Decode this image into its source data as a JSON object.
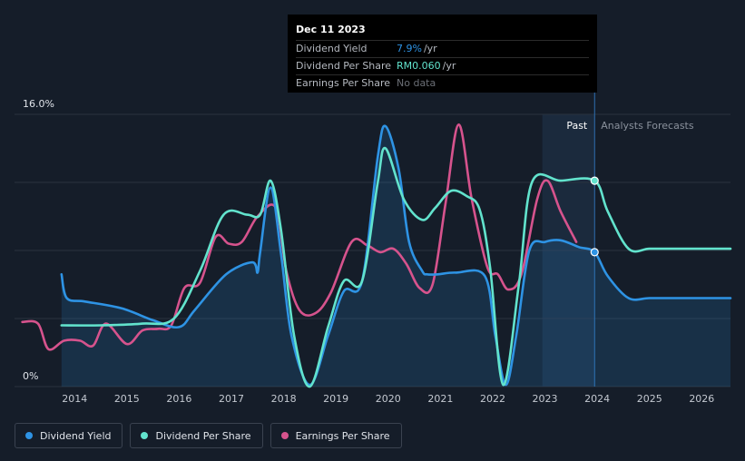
{
  "tooltip": {
    "date": "Dec 11 2023",
    "rows": [
      {
        "label": "Dividend Yield",
        "value": "7.9%",
        "unit": "/yr"
      },
      {
        "label": "Dividend Per Share",
        "value": "RM0.060",
        "unit": "/yr"
      },
      {
        "label": "Earnings Per Share",
        "value": "No data",
        "unit": ""
      }
    ]
  },
  "legend": [
    {
      "label": "Dividend Yield",
      "color": "#2e93e4"
    },
    {
      "label": "Dividend Per Share",
      "color": "#62e3cd"
    },
    {
      "label": "Earnings Per Share",
      "color": "#d6538d"
    }
  ],
  "chart_data": {
    "type": "line",
    "y_axis_labels": [
      "16.0%",
      "0%"
    ],
    "ylim": [
      0,
      16
    ],
    "xlim": [
      2012.85,
      2026.55
    ],
    "x_ticks": [
      "2014",
      "2015",
      "2016",
      "2017",
      "2018",
      "2019",
      "2020",
      "2021",
      "2022",
      "2023",
      "2024",
      "2025",
      "2026"
    ],
    "region_labels": {
      "past": "Past",
      "forecast": "Analysts Forecasts"
    },
    "past_start": 2022.95,
    "forecast_start": 2023.95,
    "series": [
      {
        "name": "Dividend Yield",
        "color": "#2e93e4",
        "filled": true,
        "x": [
          2013.75,
          2013.85,
          2014.2,
          2014.9,
          2015.5,
          2016.0,
          2016.3,
          2016.9,
          2017.4,
          2017.5,
          2017.55,
          2017.75,
          2017.95,
          2018.15,
          2018.5,
          2018.85,
          2019.15,
          2019.5,
          2019.8,
          2019.95,
          2020.2,
          2020.4,
          2020.65,
          2020.75,
          2020.95,
          2021.3,
          2021.85,
          2022.05,
          2022.25,
          2022.45,
          2022.7,
          2023.0,
          2023.3,
          2023.65,
          2023.95,
          2024.2,
          2024.6,
          2025.0,
          2025.5,
          2026.0,
          2026.55
        ],
        "values": [
          6.6,
          5.2,
          5.0,
          4.6,
          3.9,
          3.5,
          4.5,
          6.6,
          7.3,
          6.7,
          7.9,
          11.7,
          7.8,
          3.0,
          0.1,
          3.0,
          5.6,
          6.2,
          13.5,
          15.3,
          12.8,
          8.5,
          6.8,
          6.6,
          6.6,
          6.7,
          6.5,
          3.0,
          0.1,
          3.0,
          8.0,
          8.5,
          8.6,
          8.2,
          7.9,
          6.5,
          5.2,
          5.2,
          5.2,
          5.2,
          5.2
        ]
      },
      {
        "name": "Dividend Per Share",
        "color": "#62e3cd",
        "filled": false,
        "x": [
          2013.75,
          2014.5,
          2015.3,
          2015.9,
          2016.4,
          2016.85,
          2017.3,
          2017.55,
          2017.75,
          2017.95,
          2018.2,
          2018.5,
          2018.85,
          2019.15,
          2019.5,
          2019.8,
          2019.95,
          2020.3,
          2020.65,
          2020.9,
          2021.2,
          2021.5,
          2021.75,
          2021.95,
          2022.2,
          2022.5,
          2022.75,
          2023.3,
          2023.95,
          2024.2,
          2024.6,
          2025.0,
          2025.5,
          2026.0,
          2026.55
        ],
        "values": [
          3.6,
          3.6,
          3.7,
          4.0,
          6.8,
          10.1,
          10.1,
          10.1,
          12.1,
          9.2,
          3.0,
          0.0,
          3.5,
          6.2,
          6.2,
          12.0,
          14.0,
          11.0,
          9.8,
          10.5,
          11.5,
          11.2,
          10.4,
          7.0,
          0.1,
          6.0,
          12.0,
          12.1,
          12.1,
          10.3,
          8.1,
          8.1,
          8.1,
          8.1,
          8.1
        ]
      },
      {
        "name": "Earnings Per Share",
        "color": "#d6538d",
        "filled": false,
        "x": [
          2013.0,
          2013.3,
          2013.5,
          2013.8,
          2014.1,
          2014.35,
          2014.6,
          2015.0,
          2015.3,
          2015.6,
          2015.85,
          2016.1,
          2016.4,
          2016.7,
          2016.95,
          2017.2,
          2017.5,
          2017.85,
          2018.05,
          2018.3,
          2018.6,
          2018.9,
          2019.3,
          2019.6,
          2019.85,
          2020.1,
          2020.35,
          2020.6,
          2020.85,
          2021.1,
          2021.35,
          2021.6,
          2021.9,
          2022.1,
          2022.3,
          2022.55,
          2022.85,
          2023.05,
          2023.3,
          2023.6
        ],
        "values": [
          3.8,
          3.7,
          2.2,
          2.7,
          2.7,
          2.4,
          3.7,
          2.5,
          3.3,
          3.4,
          3.6,
          5.8,
          6.1,
          8.8,
          8.4,
          8.5,
          10.0,
          10.5,
          6.8,
          4.5,
          4.3,
          5.5,
          8.5,
          8.3,
          7.9,
          8.1,
          7.2,
          5.8,
          6.0,
          10.8,
          15.4,
          11.0,
          7.0,
          6.6,
          5.7,
          6.6,
          11.0,
          12.1,
          10.3,
          8.5
        ]
      }
    ],
    "markers": [
      {
        "series": "Dividend Yield",
        "x": 2023.95,
        "y": 7.9
      },
      {
        "series": "Dividend Per Share",
        "x": 2023.95,
        "y": 12.1
      }
    ]
  }
}
